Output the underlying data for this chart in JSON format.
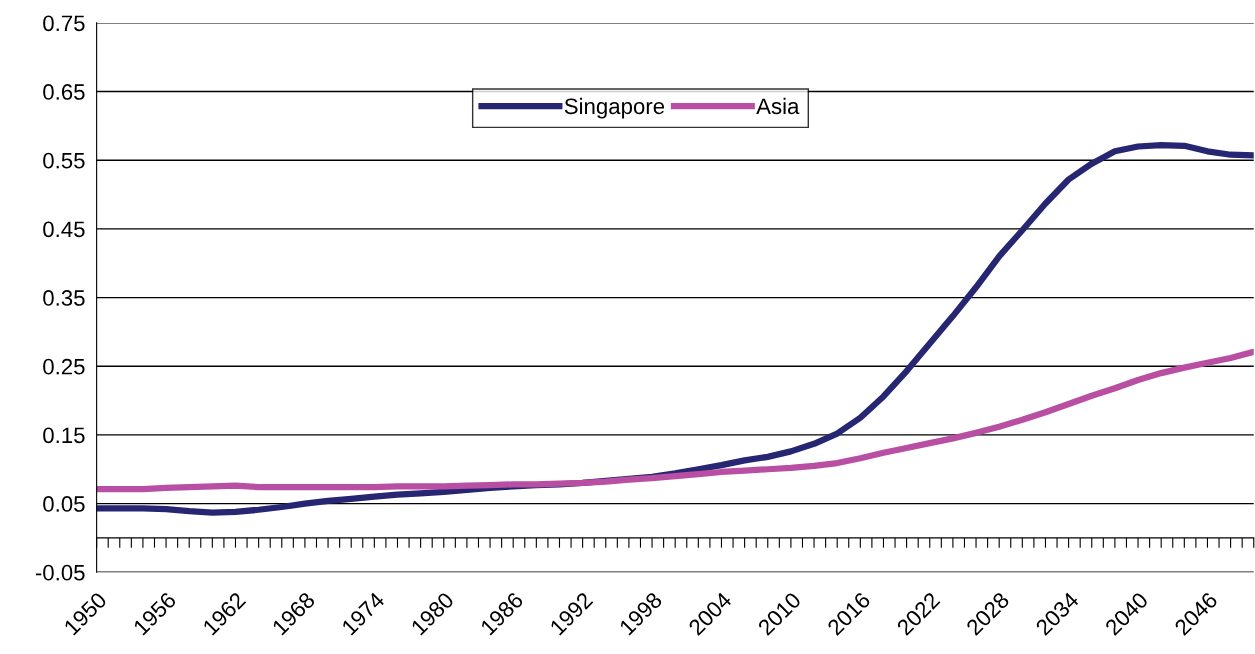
{
  "chart_data": {
    "type": "line",
    "x": [
      1950,
      1952,
      1954,
      1956,
      1958,
      1960,
      1962,
      1964,
      1966,
      1968,
      1970,
      1972,
      1974,
      1976,
      1978,
      1980,
      1982,
      1984,
      1986,
      1988,
      1990,
      1992,
      1994,
      1996,
      1998,
      2000,
      2002,
      2004,
      2006,
      2008,
      2010,
      2012,
      2014,
      2016,
      2018,
      2020,
      2022,
      2024,
      2026,
      2028,
      2030,
      2032,
      2034,
      2036,
      2038,
      2040,
      2042,
      2044,
      2046,
      2048,
      2050
    ],
    "series": [
      {
        "name": "Singapore",
        "color": "#262673",
        "values": [
          0.043,
          0.043,
          0.043,
          0.042,
          0.039,
          0.037,
          0.038,
          0.041,
          0.045,
          0.05,
          0.054,
          0.057,
          0.06,
          0.063,
          0.065,
          0.067,
          0.07,
          0.073,
          0.075,
          0.077,
          0.078,
          0.08,
          0.083,
          0.086,
          0.089,
          0.094,
          0.1,
          0.106,
          0.113,
          0.118,
          0.126,
          0.137,
          0.152,
          0.175,
          0.206,
          0.243,
          0.283,
          0.323,
          0.365,
          0.41,
          0.448,
          0.487,
          0.522,
          0.545,
          0.563,
          0.57,
          0.572,
          0.571,
          0.563,
          0.558,
          0.557
        ]
      },
      {
        "name": "Asia",
        "color": "#b94fa3",
        "values": [
          0.071,
          0.071,
          0.071,
          0.073,
          0.074,
          0.075,
          0.076,
          0.074,
          0.074,
          0.074,
          0.074,
          0.074,
          0.074,
          0.075,
          0.075,
          0.075,
          0.076,
          0.077,
          0.078,
          0.078,
          0.079,
          0.08,
          0.082,
          0.085,
          0.087,
          0.09,
          0.093,
          0.096,
          0.098,
          0.1,
          0.102,
          0.105,
          0.109,
          0.116,
          0.124,
          0.131,
          0.138,
          0.145,
          0.153,
          0.162,
          0.172,
          0.183,
          0.195,
          0.207,
          0.218,
          0.23,
          0.24,
          0.248,
          0.255,
          0.262,
          0.271
        ]
      }
    ],
    "xlim": [
      1950,
      2050
    ],
    "xticks": [
      1950,
      {
        "value": 1951,
        "label": null
      },
      {
        "value": 1952,
        "label": null
      },
      {
        "value": 1953,
        "label": null
      },
      {
        "value": 1954,
        "label": null
      },
      {
        "value": 1955,
        "label": null
      },
      1956,
      {
        "value": 1957,
        "label": null
      },
      {
        "value": 1958,
        "label": null
      },
      {
        "value": 1959,
        "label": null
      },
      {
        "value": 1960,
        "label": null
      },
      {
        "value": 1961,
        "label": null
      },
      1962,
      {
        "value": 1963,
        "label": null
      },
      {
        "value": 1964,
        "label": null
      },
      {
        "value": 1965,
        "label": null
      },
      {
        "value": 1966,
        "label": null
      },
      {
        "value": 1967,
        "label": null
      },
      1968,
      {
        "value": 1969,
        "label": null
      },
      {
        "value": 1970,
        "label": null
      },
      {
        "value": 1971,
        "label": null
      },
      {
        "value": 1972,
        "label": null
      },
      {
        "value": 1973,
        "label": null
      },
      1974,
      {
        "value": 1975,
        "label": null
      },
      {
        "value": 1976,
        "label": null
      },
      {
        "value": 1977,
        "label": null
      },
      {
        "value": 1978,
        "label": null
      },
      {
        "value": 1979,
        "label": null
      },
      1980,
      {
        "value": 1981,
        "label": null
      },
      {
        "value": 1982,
        "label": null
      },
      {
        "value": 1983,
        "label": null
      },
      {
        "value": 1984,
        "label": null
      },
      {
        "value": 1985,
        "label": null
      },
      1986,
      {
        "value": 1987,
        "label": null
      },
      {
        "value": 1988,
        "label": null
      },
      {
        "value": 1989,
        "label": null
      },
      {
        "value": 1990,
        "label": null
      },
      {
        "value": 1991,
        "label": null
      },
      1992,
      {
        "value": 1993,
        "label": null
      },
      {
        "value": 1994,
        "label": null
      },
      {
        "value": 1995,
        "label": null
      },
      {
        "value": 1996,
        "label": null
      },
      {
        "value": 1997,
        "label": null
      },
      1998,
      {
        "value": 1999,
        "label": null
      },
      {
        "value": 2000,
        "label": null
      },
      {
        "value": 2001,
        "label": null
      },
      {
        "value": 2002,
        "label": null
      },
      {
        "value": 2003,
        "label": null
      },
      2004,
      {
        "value": 2005,
        "label": null
      },
      {
        "value": 2006,
        "label": null
      },
      {
        "value": 2007,
        "label": null
      },
      {
        "value": 2008,
        "label": null
      },
      {
        "value": 2009,
        "label": null
      },
      2010,
      {
        "value": 2011,
        "label": null
      },
      {
        "value": 2012,
        "label": null
      },
      {
        "value": 2013,
        "label": null
      },
      {
        "value": 2014,
        "label": null
      },
      {
        "value": 2015,
        "label": null
      },
      2016,
      {
        "value": 2017,
        "label": null
      },
      {
        "value": 2018,
        "label": null
      },
      {
        "value": 2019,
        "label": null
      },
      {
        "value": 2020,
        "label": null
      },
      {
        "value": 2021,
        "label": null
      },
      2022,
      {
        "value": 2023,
        "label": null
      },
      {
        "value": 2024,
        "label": null
      },
      {
        "value": 2025,
        "label": null
      },
      {
        "value": 2026,
        "label": null
      },
      {
        "value": 2027,
        "label": null
      },
      2028,
      {
        "value": 2029,
        "label": null
      },
      {
        "value": 2030,
        "label": null
      },
      {
        "value": 2031,
        "label": null
      },
      {
        "value": 2032,
        "label": null
      },
      {
        "value": 2033,
        "label": null
      },
      2034,
      {
        "value": 2035,
        "label": null
      },
      {
        "value": 2036,
        "label": null
      },
      {
        "value": 2037,
        "label": null
      },
      {
        "value": 2038,
        "label": null
      },
      {
        "value": 2039,
        "label": null
      },
      2040,
      {
        "value": 2041,
        "label": null
      },
      {
        "value": 2042,
        "label": null
      },
      {
        "value": 2043,
        "label": null
      },
      {
        "value": 2044,
        "label": null
      },
      {
        "value": 2045,
        "label": null
      },
      2046,
      {
        "value": 2047,
        "label": null
      },
      {
        "value": 2048,
        "label": null
      },
      {
        "value": 2049,
        "label": null
      },
      {
        "value": 2050,
        "label": null
      }
    ],
    "ylim": [
      -0.05,
      0.75
    ],
    "yticks": [
      -0.05,
      0.05,
      0.15,
      0.25,
      0.35,
      0.45,
      0.55,
      0.65,
      0.75
    ],
    "grid": "y",
    "legend": "top",
    "marker": "none",
    "line_style": "solid"
  }
}
